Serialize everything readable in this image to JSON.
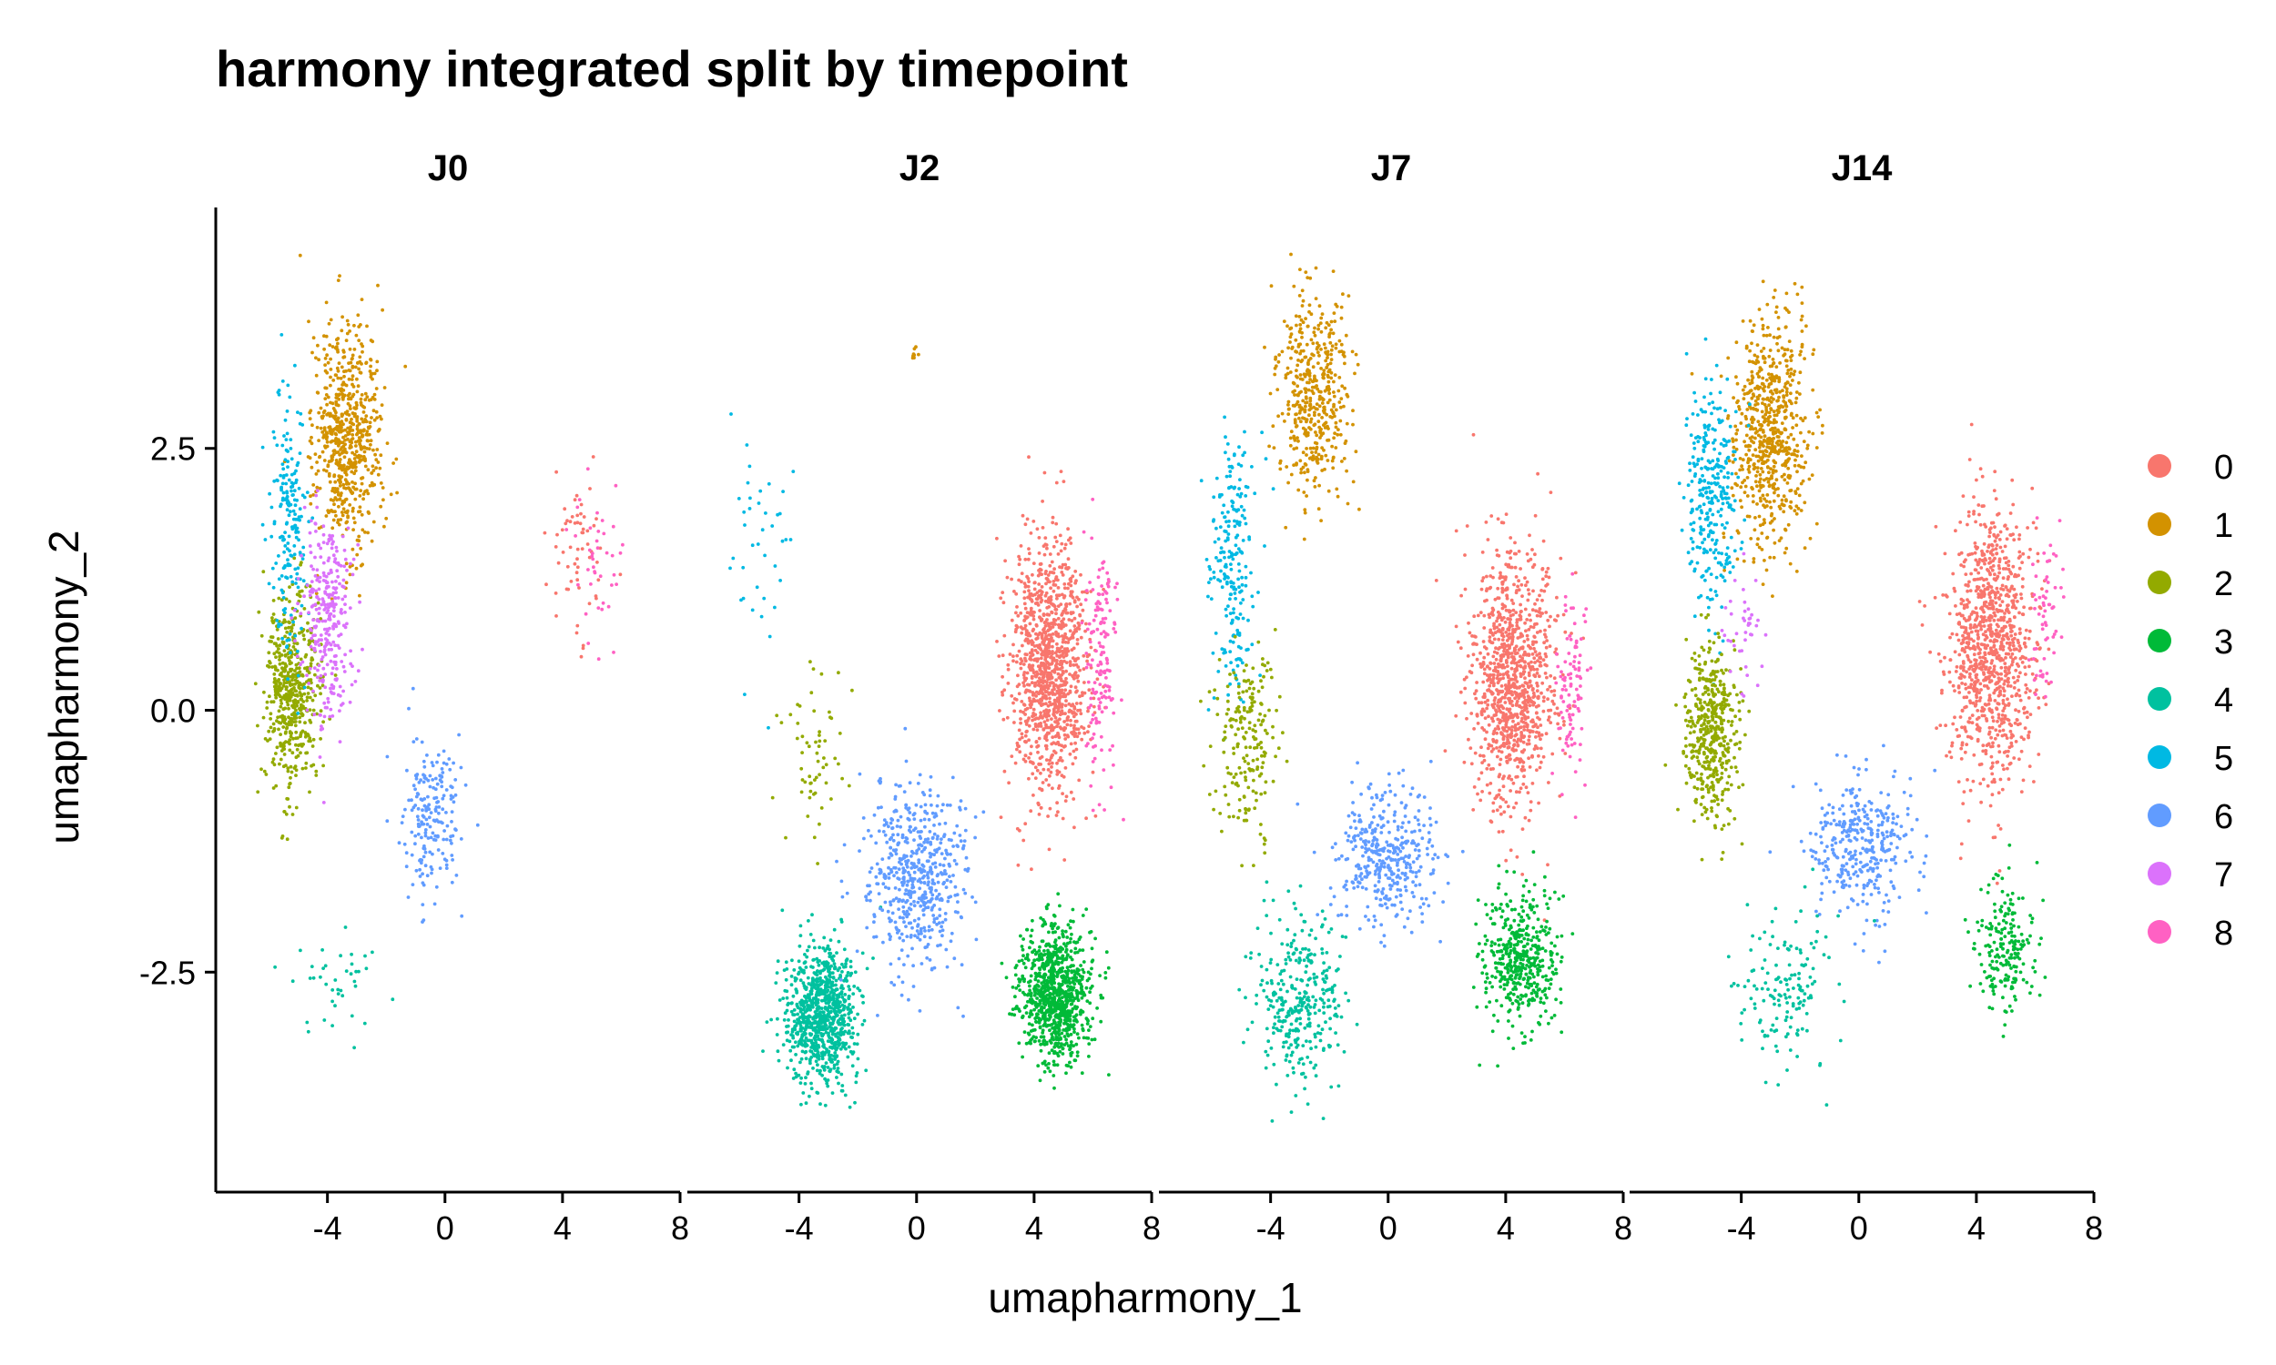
{
  "chart_data": {
    "type": "scatter",
    "title": "harmony integrated split by timepoint",
    "xlabel": "umapharmony_1",
    "ylabel": "umapharmony_2",
    "xlim": [
      -7.8,
      8
    ],
    "ylim": [
      -4.6,
      4.8
    ],
    "x_ticks": [
      {
        "value": -4,
        "label": "-4"
      },
      {
        "value": 0,
        "label": "0"
      },
      {
        "value": 4,
        "label": "4"
      },
      {
        "value": 8,
        "label": "8"
      }
    ],
    "y_ticks": [
      {
        "value": 2.5,
        "label": "2.5"
      },
      {
        "value": 0,
        "label": "0.0"
      },
      {
        "value": -2.5,
        "label": "-2.5"
      }
    ],
    "grid": false,
    "legend_position": "right",
    "facets": [
      "J0",
      "J2",
      "J7",
      "J14"
    ],
    "clusters": [
      {
        "name": "0",
        "color": "#F8766D"
      },
      {
        "name": "1",
        "color": "#D39200"
      },
      {
        "name": "2",
        "color": "#93AA00"
      },
      {
        "name": "3",
        "color": "#00BA38"
      },
      {
        "name": "4",
        "color": "#00C19F"
      },
      {
        "name": "5",
        "color": "#00B9E3"
      },
      {
        "name": "6",
        "color": "#619CFF"
      },
      {
        "name": "7",
        "color": "#DB72FB"
      },
      {
        "name": "8",
        "color": "#FF61C3"
      }
    ],
    "cluster_regions": {
      "J0": [
        {
          "cluster": "1",
          "x": -3.3,
          "y": 2.6,
          "sx": 1.0,
          "sy": 1.0,
          "n": 650
        },
        {
          "cluster": "2",
          "x": -5.2,
          "y": 0.2,
          "sx": 0.8,
          "sy": 0.9,
          "n": 520
        },
        {
          "cluster": "5",
          "x": -5.3,
          "y": 1.8,
          "sx": 0.6,
          "sy": 1.1,
          "n": 200
        },
        {
          "cluster": "7",
          "x": -4.0,
          "y": 0.9,
          "sx": 0.8,
          "sy": 0.9,
          "n": 300
        },
        {
          "cluster": "6",
          "x": -0.5,
          "y": -1.0,
          "sx": 0.9,
          "sy": 0.7,
          "n": 200
        },
        {
          "cluster": "0",
          "x": 4.5,
          "y": 1.5,
          "sx": 1.0,
          "sy": 0.8,
          "n": 60
        },
        {
          "cluster": "8",
          "x": 5.2,
          "y": 1.4,
          "sx": 0.8,
          "sy": 0.7,
          "n": 40
        },
        {
          "cluster": "4",
          "x": -3.5,
          "y": -2.6,
          "sx": 1.6,
          "sy": 0.5,
          "n": 40
        }
      ],
      "J2": [
        {
          "cluster": "0",
          "x": 4.5,
          "y": 0.4,
          "sx": 1.2,
          "sy": 1.1,
          "n": 1100
        },
        {
          "cluster": "8",
          "x": 6.3,
          "y": 0.5,
          "sx": 0.5,
          "sy": 1.0,
          "n": 150
        },
        {
          "cluster": "3",
          "x": 4.7,
          "y": -2.7,
          "sx": 1.1,
          "sy": 0.6,
          "n": 900
        },
        {
          "cluster": "4",
          "x": -3.2,
          "y": -2.9,
          "sx": 1.1,
          "sy": 0.6,
          "n": 850
        },
        {
          "cluster": "6",
          "x": 0.0,
          "y": -1.6,
          "sx": 1.5,
          "sy": 0.8,
          "n": 550
        },
        {
          "cluster": "5",
          "x": -5.5,
          "y": 1.6,
          "sx": 1.0,
          "sy": 1.2,
          "n": 40
        },
        {
          "cluster": "2",
          "x": -3.5,
          "y": -0.5,
          "sx": 1.2,
          "sy": 0.8,
          "n": 60
        },
        {
          "cluster": "1",
          "x": -0.1,
          "y": 3.4,
          "sx": 0.2,
          "sy": 0.1,
          "n": 8
        }
      ],
      "J7": [
        {
          "cluster": "1",
          "x": -2.5,
          "y": 3.0,
          "sx": 1.1,
          "sy": 0.9,
          "n": 450
        },
        {
          "cluster": "5",
          "x": -5.3,
          "y": 1.5,
          "sx": 0.8,
          "sy": 1.2,
          "n": 220
        },
        {
          "cluster": "2",
          "x": -4.8,
          "y": -0.3,
          "sx": 1.0,
          "sy": 0.8,
          "n": 200
        },
        {
          "cluster": "0",
          "x": 4.2,
          "y": 0.3,
          "sx": 1.3,
          "sy": 1.1,
          "n": 1000
        },
        {
          "cluster": "8",
          "x": 6.2,
          "y": 0.2,
          "sx": 0.5,
          "sy": 0.8,
          "n": 100
        },
        {
          "cluster": "3",
          "x": 4.5,
          "y": -2.4,
          "sx": 1.1,
          "sy": 0.6,
          "n": 450
        },
        {
          "cluster": "6",
          "x": 0.0,
          "y": -1.4,
          "sx": 1.6,
          "sy": 0.6,
          "n": 380
        },
        {
          "cluster": "4",
          "x": -3.0,
          "y": -2.8,
          "sx": 1.4,
          "sy": 0.7,
          "n": 330
        }
      ],
      "J14": [
        {
          "cluster": "1",
          "x": -3.0,
          "y": 2.7,
          "sx": 1.2,
          "sy": 1.0,
          "n": 650
        },
        {
          "cluster": "5",
          "x": -5.0,
          "y": 2.0,
          "sx": 0.8,
          "sy": 1.0,
          "n": 300
        },
        {
          "cluster": "2",
          "x": -5.0,
          "y": -0.2,
          "sx": 0.8,
          "sy": 0.8,
          "n": 450
        },
        {
          "cluster": "7",
          "x": -4.0,
          "y": 0.8,
          "sx": 0.6,
          "sy": 0.6,
          "n": 40
        },
        {
          "cluster": "0",
          "x": 4.5,
          "y": 0.6,
          "sx": 1.3,
          "sy": 1.2,
          "n": 1000
        },
        {
          "cluster": "8",
          "x": 6.3,
          "y": 0.8,
          "sx": 0.5,
          "sy": 0.8,
          "n": 60
        },
        {
          "cluster": "6",
          "x": 0.0,
          "y": -1.3,
          "sx": 1.6,
          "sy": 0.6,
          "n": 350
        },
        {
          "cluster": "3",
          "x": 5.0,
          "y": -2.3,
          "sx": 0.9,
          "sy": 0.6,
          "n": 200
        },
        {
          "cluster": "4",
          "x": -2.5,
          "y": -2.7,
          "sx": 1.5,
          "sy": 0.7,
          "n": 150
        }
      ]
    }
  }
}
